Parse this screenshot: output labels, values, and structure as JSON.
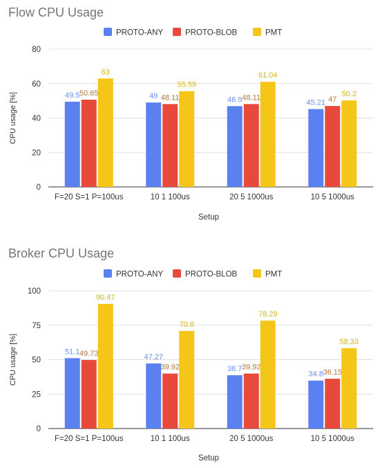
{
  "chart_data": [
    {
      "type": "bar",
      "title": "Flow CPU Usage",
      "xlabel": "Setup",
      "ylabel": "CPU usage [%]",
      "ylim": [
        0,
        80
      ],
      "yticks": [
        0,
        20,
        40,
        60,
        80
      ],
      "grid": true,
      "legend_position": "top",
      "categories": [
        "F=20 S=1 P=100us",
        "10 1 100us",
        "20 5 1000us",
        "10 5 1000us"
      ],
      "series": [
        {
          "name": "PROTO-ANY",
          "color": "#5b80f0",
          "label_color": "#6b8ef2",
          "values": [
            49.5,
            49,
            46.9,
            45.21
          ],
          "labels": [
            "49.5",
            "49",
            "46.9",
            "45.21"
          ]
        },
        {
          "name": "PROTO-BLOB",
          "color": "#e8493a",
          "label_color": "#b3773f",
          "values": [
            50.65,
            48.11,
            48.11,
            47
          ],
          "labels": [
            "50.65",
            "48.11",
            "48.11",
            "47"
          ]
        },
        {
          "name": "PMT",
          "color": "#f5c518",
          "label_color": "#d6b51a",
          "values": [
            63,
            55.59,
            61.04,
            50.2
          ],
          "labels": [
            "63",
            "55.59",
            "61.04",
            "50.2"
          ]
        }
      ]
    },
    {
      "type": "bar",
      "title": "Broker CPU Usage",
      "xlabel": "Setup",
      "ylabel": "CPU usage [%]",
      "ylim": [
        0,
        100
      ],
      "yticks": [
        0,
        25,
        50,
        75,
        100
      ],
      "grid": true,
      "legend_position": "top",
      "categories": [
        "F=20 S=1 P=100us",
        "10 1 100us",
        "20 5 1000us",
        "10 5 1000us"
      ],
      "series": [
        {
          "name": "PROTO-ANY",
          "color": "#5b80f0",
          "label_color": "#6b8ef2",
          "values": [
            51.1,
            47.27,
            38.7,
            34.8
          ],
          "labels": [
            "51.1",
            "47.27",
            "38.7",
            "34.8"
          ]
        },
        {
          "name": "PROTO-BLOB",
          "color": "#e8493a",
          "label_color": "#b3773f",
          "values": [
            49.73,
            39.92,
            39.92,
            36.15
          ],
          "labels": [
            "49.73",
            "39.92",
            "39.92",
            "36.15"
          ]
        },
        {
          "name": "PMT",
          "color": "#f5c518",
          "label_color": "#d6b51a",
          "values": [
            90.47,
            70.8,
            78.29,
            58.33
          ],
          "labels": [
            "90.47",
            "70.8",
            "78.29",
            "58.33"
          ]
        }
      ]
    }
  ]
}
